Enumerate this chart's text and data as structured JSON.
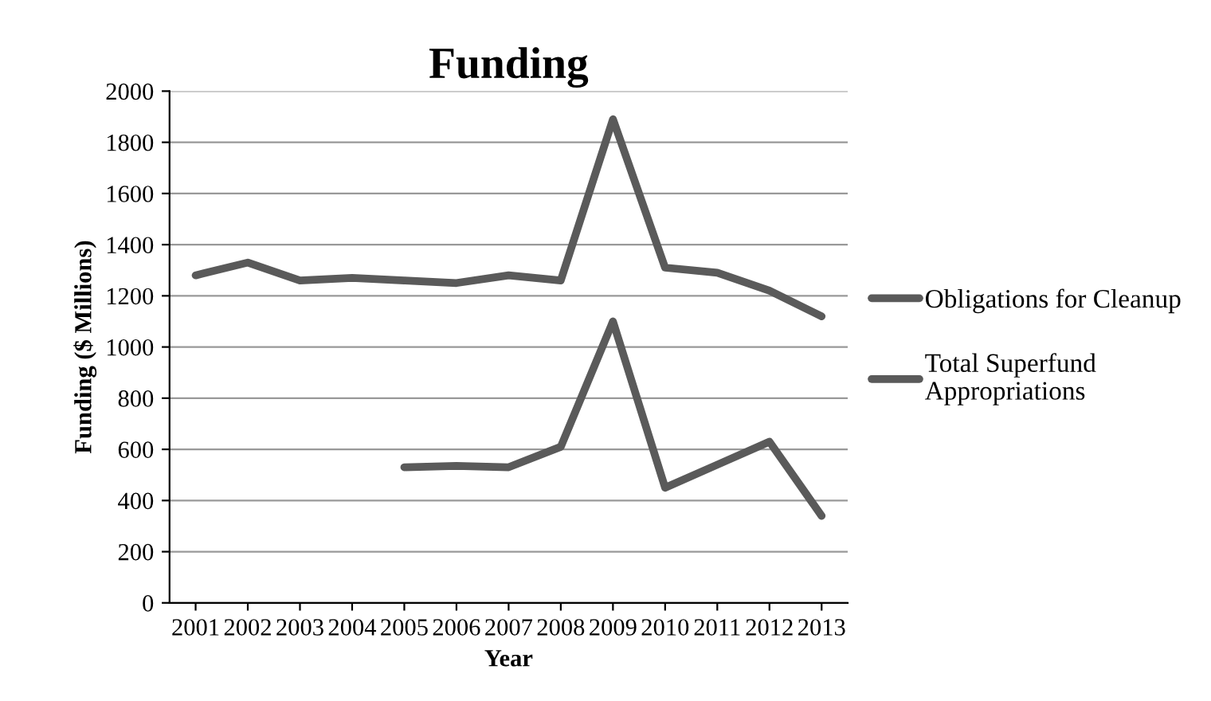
{
  "chart_data": {
    "type": "line",
    "title": "Funding",
    "xlabel": "Year",
    "ylabel": "Funding ($ Millions)",
    "categories": [
      "2001",
      "2002",
      "2003",
      "2004",
      "2005",
      "2006",
      "2007",
      "2008",
      "2009",
      "2010",
      "2011",
      "2012",
      "2013"
    ],
    "series": [
      {
        "name": "Obligations for Cleanup",
        "color": "#5a5a5a",
        "values": [
          1280,
          1330,
          1260,
          1270,
          1260,
          1250,
          1280,
          1260,
          1890,
          1310,
          1290,
          1220,
          1120
        ]
      },
      {
        "name": "Total Superfund\nAppropriations",
        "color": "#5a5a5a",
        "values": [
          null,
          null,
          null,
          null,
          530,
          535,
          530,
          610,
          1100,
          450,
          540,
          630,
          340
        ]
      }
    ],
    "ylim": [
      0,
      2000
    ],
    "yticks": [
      0,
      200,
      400,
      600,
      800,
      1000,
      1200,
      1400,
      1600,
      1800,
      2000
    ],
    "grid": "y",
    "legend": "right",
    "marker": "none",
    "line_style": "solid"
  }
}
